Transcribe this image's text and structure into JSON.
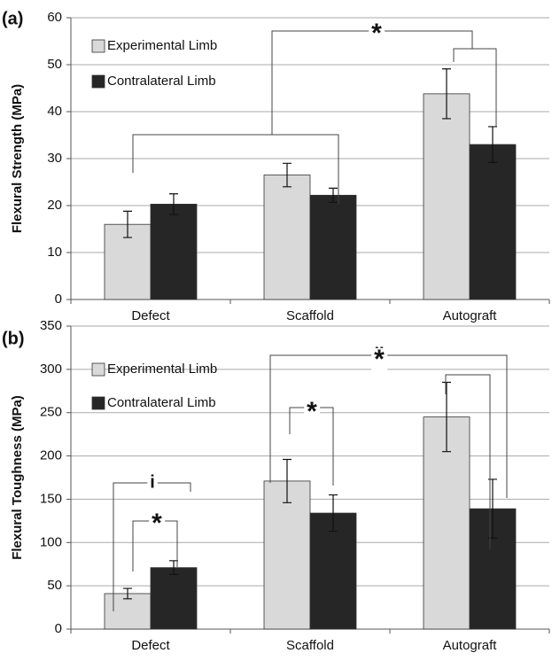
{
  "chart_data": [
    {
      "type": "bar",
      "panel_label": "(a)",
      "y_label": "Flexural Strength (MPa)",
      "categories": [
        "Defect",
        "Scaffold",
        "Autograft"
      ],
      "series": [
        {
          "name": "Experimental Limb",
          "color": "#d9d9d9",
          "values": [
            16,
            26.5,
            43.8
          ],
          "errors": [
            2.8,
            2.5,
            5.3
          ]
        },
        {
          "name": "Contralateral Limb",
          "color": "#262626",
          "values": [
            20.3,
            22.2,
            33
          ],
          "errors": [
            2.2,
            1.5,
            3.8
          ]
        }
      ],
      "ylim": [
        0,
        60
      ],
      "yticks": [
        0,
        10,
        20,
        30,
        40,
        50,
        60
      ],
      "grid": true,
      "annotations": [
        {
          "text": "*"
        }
      ]
    },
    {
      "type": "bar",
      "panel_label": "(b)",
      "y_label": "Flexural Toughness (MPa)",
      "categories": [
        "Defect",
        "Scaffold",
        "Autograft"
      ],
      "series": [
        {
          "name": "Experimental Limb",
          "color": "#d9d9d9",
          "values": [
            41,
            171,
            245
          ],
          "errors": [
            6,
            25,
            40
          ]
        },
        {
          "name": "Contralateral Limb",
          "color": "#262626",
          "values": [
            71,
            134,
            139
          ],
          "errors": [
            8,
            21,
            34
          ]
        }
      ],
      "ylim": [
        0,
        350
      ],
      "yticks": [
        0,
        50,
        100,
        150,
        200,
        250,
        300,
        350
      ],
      "grid": true,
      "annotations": [
        {
          "text": "i"
        },
        {
          "text": "*"
        },
        {
          "text": "*"
        },
        {
          "text": "ii"
        },
        {
          "text": "*"
        }
      ]
    }
  ]
}
